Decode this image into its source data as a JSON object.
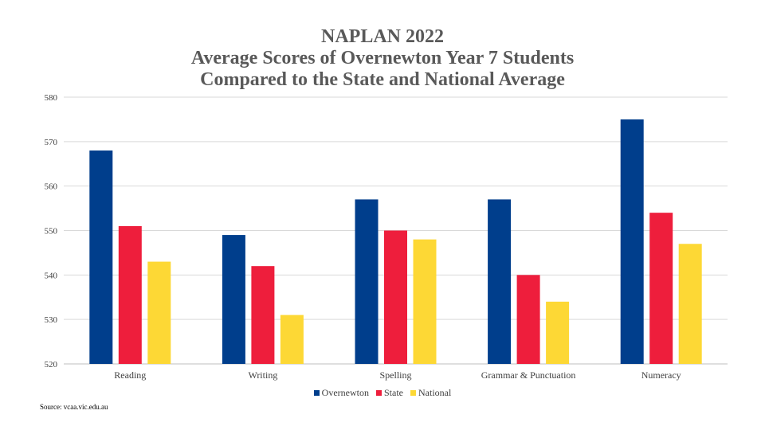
{
  "chart_data": {
    "type": "bar",
    "title_lines": [
      "NAPLAN 2022",
      "Average Scores of Overnewton Year 7 Students",
      "Compared to the State and National Average"
    ],
    "categories": [
      "Reading",
      "Writing",
      "Spelling",
      "Grammar & Punctuation",
      "Numeracy"
    ],
    "series": [
      {
        "name": "Overnewton",
        "color": "#003E8C",
        "values": [
          568,
          549,
          557,
          557,
          575
        ]
      },
      {
        "name": "State",
        "color": "#EE1E3C",
        "values": [
          551,
          542,
          550,
          540,
          554
        ]
      },
      {
        "name": "National",
        "color": "#FDD835",
        "values": [
          543,
          531,
          548,
          534,
          547
        ]
      }
    ],
    "ylim": [
      520,
      580
    ],
    "yticks": [
      "520",
      "530",
      "540",
      "550",
      "560",
      "570",
      "580"
    ],
    "grid": true,
    "legend_position": "bottom",
    "source": "Source: vcaa.vic.edu.au"
  }
}
